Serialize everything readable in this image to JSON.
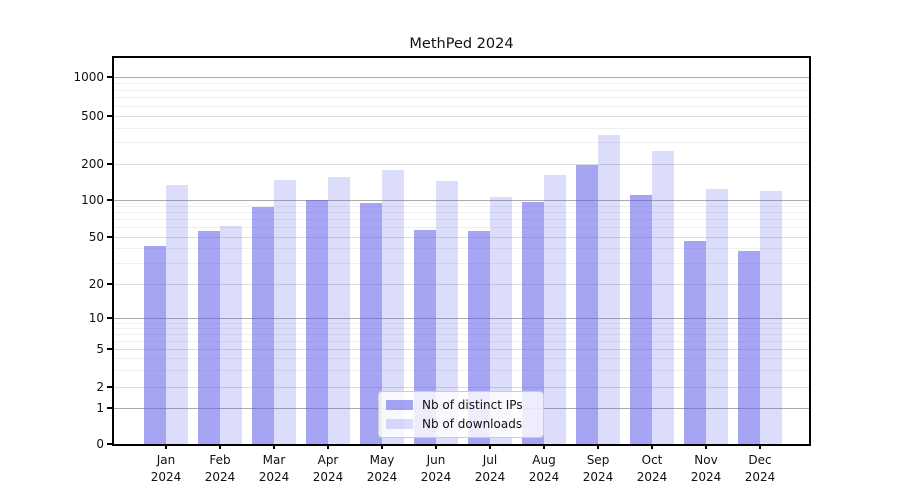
{
  "title": "MethPed 2024",
  "chart_data": {
    "type": "bar",
    "title": "MethPed 2024",
    "categories": [
      "Jan",
      "Feb",
      "Mar",
      "Apr",
      "May",
      "Jun",
      "Jul",
      "Aug",
      "Sep",
      "Oct",
      "Nov",
      "Dec"
    ],
    "year": "2024",
    "series": [
      {
        "name": "Nb of distinct IPs",
        "values": [
          42,
          55,
          87,
          100,
          95,
          57,
          56,
          97,
          193,
          109,
          46,
          38
        ]
      },
      {
        "name": "Nb of downloads",
        "values": [
          134,
          61,
          146,
          156,
          177,
          143,
          106,
          162,
          348,
          253,
          123,
          118
        ]
      }
    ],
    "xlabel": "",
    "ylabel": "",
    "yscale": "log (compressed linear segment near 0)",
    "ytick_values": [
      1000,
      500,
      200,
      100,
      50,
      20,
      10,
      5,
      2,
      1,
      0
    ],
    "ytick_labels": [
      "1000",
      "500",
      "200",
      "100",
      "50",
      "20",
      "10",
      "5",
      "2",
      "1",
      "0"
    ],
    "ylim": [
      0,
      1500
    ],
    "grid": "on (log major and minor horizontal lines)",
    "legend_position": "inside lower-center"
  },
  "legend": {
    "items": [
      {
        "label": "Nb of distinct IPs",
        "series": "ips"
      },
      {
        "label": "Nb of downloads",
        "series": "downloads"
      }
    ]
  },
  "colors": {
    "ips_bar": "rgba(95,95,235,0.56)",
    "downloads_bar": "rgba(95,95,235,0.22)",
    "grid_major": "#ababab",
    "grid_mid": "#dcdcdc",
    "grid_minor": "#efefef",
    "spine": "#000000"
  }
}
